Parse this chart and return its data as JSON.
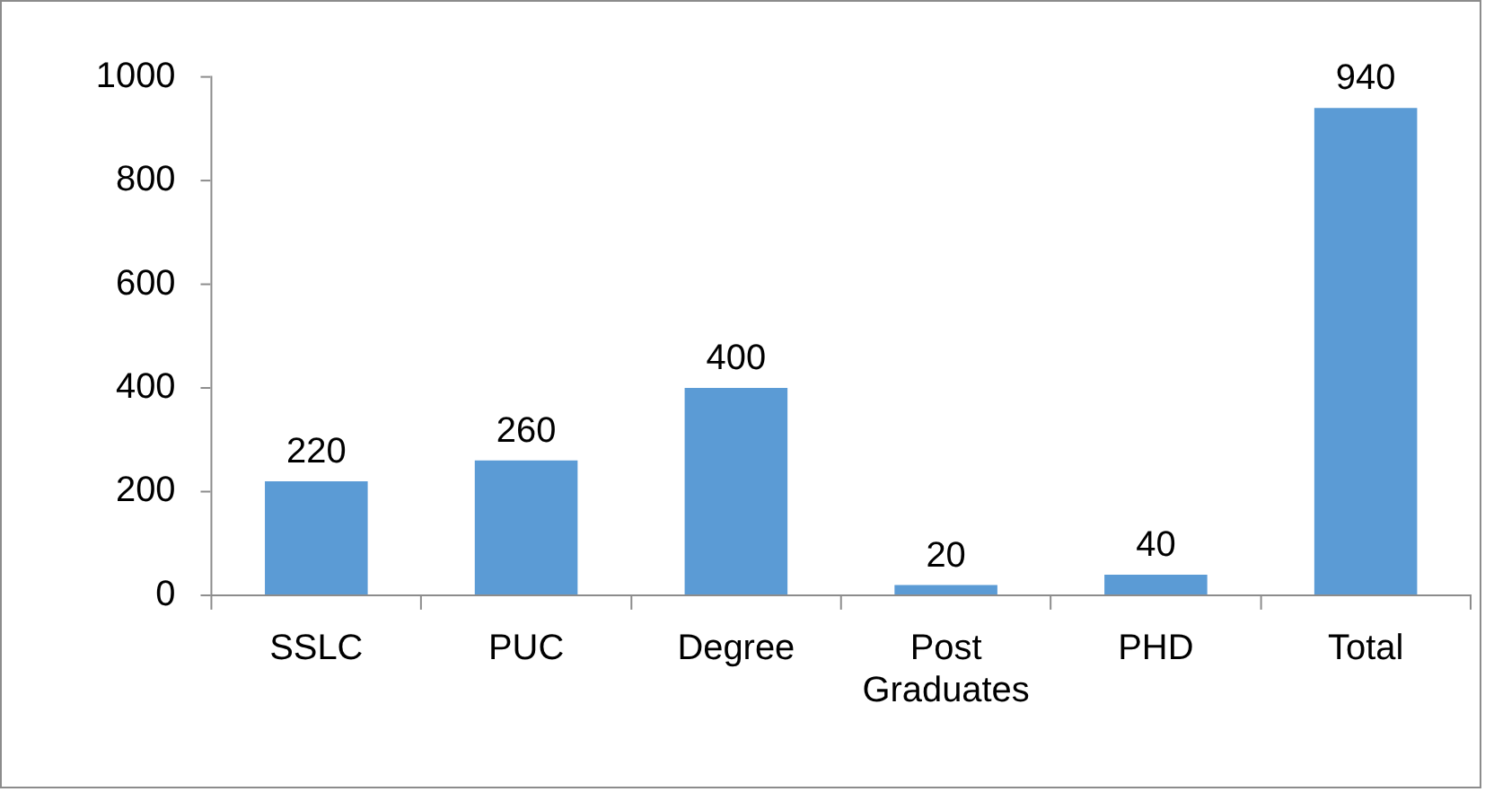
{
  "chart_data": {
    "type": "bar",
    "categories": [
      "SSLC",
      "PUC",
      "Degree",
      "Post Graduates",
      "PHD",
      "Total"
    ],
    "values": [
      220,
      260,
      400,
      20,
      40,
      940
    ],
    "color": "#5b9bd5",
    "ylim": [
      0,
      1000
    ],
    "yticks": [
      0,
      200,
      400,
      600,
      800,
      1000
    ],
    "data_labels": true,
    "legend": false
  }
}
